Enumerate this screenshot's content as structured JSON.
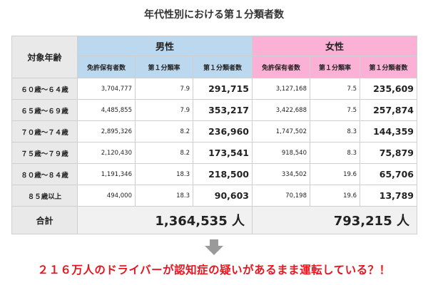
{
  "title": "年代性別における第１分類者数",
  "table": {
    "corner_label": "対象年齢",
    "group_male": "男性",
    "group_female": "女性",
    "subheaders": {
      "license": "免許保有者数",
      "rate": "第１分類率",
      "count": "第１分類者数"
    },
    "rows": [
      {
        "age": "６０歳～６４歳",
        "m_license": "3,704,777",
        "m_rate": "7.9",
        "m_count": "291,715",
        "f_license": "3,127,168",
        "f_rate": "7.5",
        "f_count": "235,609"
      },
      {
        "age": "６５歳～６９歳",
        "m_license": "4,485,855",
        "m_rate": "7.9",
        "m_count": "353,217",
        "f_license": "3,422,688",
        "f_rate": "7.5",
        "f_count": "257,874"
      },
      {
        "age": "７０歳～７４歳",
        "m_license": "2,895,326",
        "m_rate": "8.2",
        "m_count": "236,960",
        "f_license": "1,747,502",
        "f_rate": "8.3",
        "f_count": "144,359"
      },
      {
        "age": "７５歳～７９歳",
        "m_license": "2,120,430",
        "m_rate": "8.2",
        "m_count": "173,541",
        "f_license": "918,540",
        "f_rate": "8.3",
        "f_count": "75,879"
      },
      {
        "age": "８０歳～８４歳",
        "m_license": "1,191,346",
        "m_rate": "18.3",
        "m_count": "218,500",
        "f_license": "334,502",
        "f_rate": "19.6",
        "f_count": "65,706"
      },
      {
        "age": "８５歳以上",
        "m_license": "494,000",
        "m_rate": "18.3",
        "m_count": "90,603",
        "f_license": "70,198",
        "f_rate": "19.6",
        "f_count": "13,789"
      }
    ],
    "total_label": "合計",
    "total_male": "1,364,535 人",
    "total_female": "793,215 人"
  },
  "headline": "２１６万人のドライバーが認知症の疑いがあるまま運転している？！",
  "colors": {
    "male_header": "#bcd8ee",
    "female_header": "#fbb0d6",
    "headline": "#e8141e",
    "arrow": "#9a9a9a"
  },
  "icons": {
    "arrow": "down-arrow-icon"
  }
}
